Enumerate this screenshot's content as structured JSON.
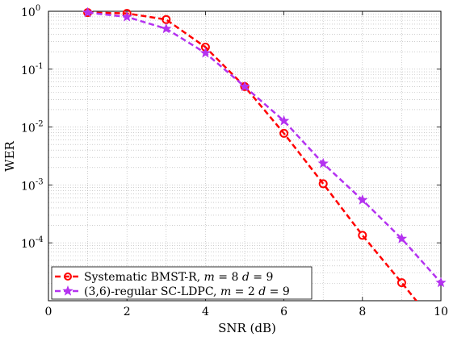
{
  "chart_data": {
    "type": "line",
    "xlabel": "SNR (dB)",
    "ylabel": "WER",
    "xlim": [
      0,
      10
    ],
    "ylim_log10": [
      -5,
      0
    ],
    "y_scale": "log",
    "grid": true,
    "legend_position": "bottom-left",
    "x_ticks": [
      0,
      2,
      4,
      6,
      8,
      10
    ],
    "x_tick_labels": [
      "0",
      "2",
      "4",
      "6",
      "8",
      "10"
    ],
    "y_ticks": [
      1,
      0.1,
      0.01,
      0.001,
      0.0001
    ],
    "y_tick_labels": [
      {
        "base": "10",
        "exp": "0"
      },
      {
        "base": "10",
        "exp": "-1"
      },
      {
        "base": "10",
        "exp": "-2"
      },
      {
        "base": "10",
        "exp": "-3"
      },
      {
        "base": "10",
        "exp": "-4"
      }
    ],
    "series": [
      {
        "name": "Systematic BMST-R, m = 8 d = 9",
        "legend": {
          "prefix": "Systematic BMST-R, ",
          "m_value": "8",
          "d_value": "9"
        },
        "color": "#ff0000",
        "marker": "circle",
        "x": [
          1,
          2,
          3,
          4,
          5,
          6,
          7,
          8,
          9,
          9.4
        ],
        "y": [
          0.95,
          0.92,
          0.72,
          0.24,
          0.05,
          0.0078,
          0.00105,
          0.000135,
          2.05e-05,
          9.5e-06
        ]
      },
      {
        "name": "(3,6)-regular SC-LDPC, m = 2 d = 9",
        "legend": {
          "prefix": "(3,6)-regular SC-LDPC, ",
          "m_value": "2",
          "d_value": "9"
        },
        "color": "#b432f0",
        "marker": "star",
        "x": [
          1,
          2,
          3,
          4,
          5,
          6,
          7,
          8,
          9,
          10
        ],
        "y": [
          0.95,
          0.8,
          0.5,
          0.19,
          0.05,
          0.0128,
          0.00235,
          0.00055,
          0.000118,
          2.05e-05
        ]
      }
    ]
  }
}
